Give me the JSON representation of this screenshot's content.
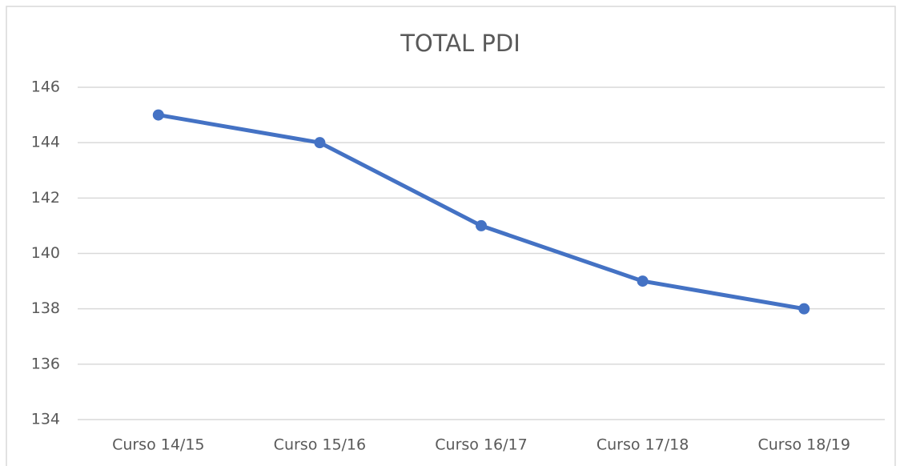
{
  "chart_data": {
    "type": "line",
    "title": "TOTAL PDI",
    "categories": [
      "Curso 14/15",
      "Curso 15/16",
      "Curso 16/17",
      "Curso 17/18",
      "Curso 18/19"
    ],
    "values": [
      145,
      144,
      141,
      139,
      138
    ],
    "color": "#4472c4",
    "ylim": [
      134,
      146
    ],
    "yticks": [
      134,
      136,
      138,
      140,
      142,
      144,
      146
    ],
    "grid": true
  }
}
